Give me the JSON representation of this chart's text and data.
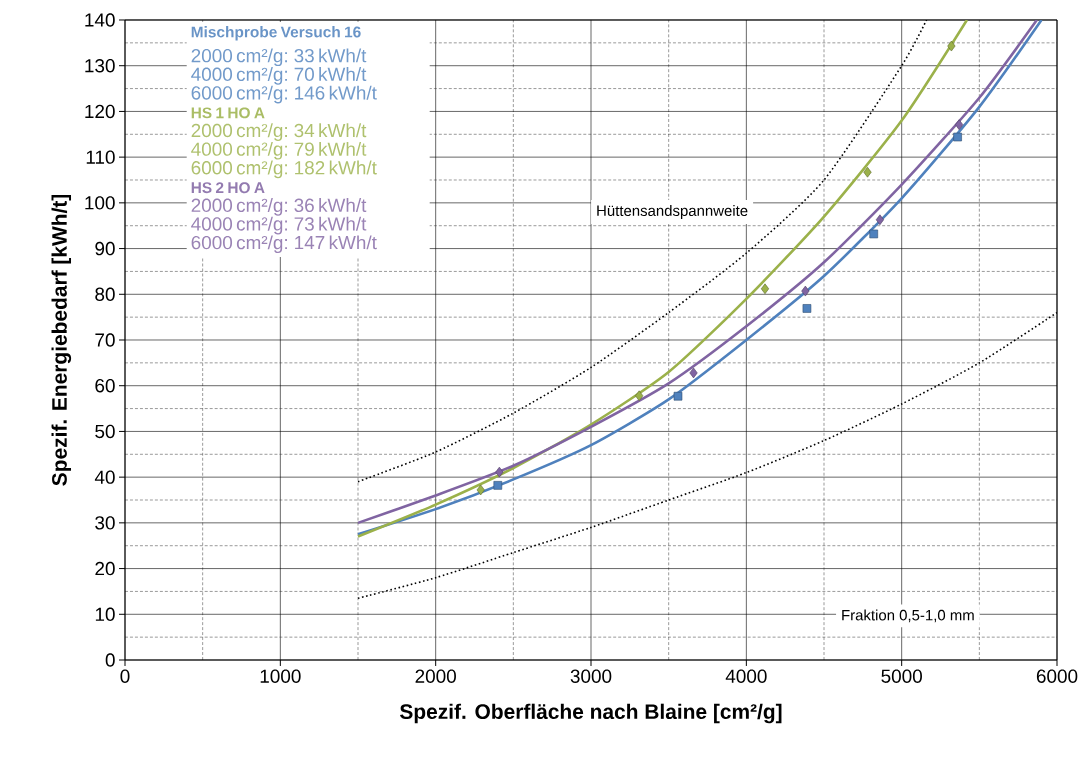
{
  "chart_data": {
    "type": "line",
    "xlabel": "Spezif. Oberfläche nach Blaine [cm²/g]",
    "ylabel": "Spezif. Energiebedarf [kWh/t]",
    "xlim": [
      0,
      6000
    ],
    "ylim": [
      0,
      140
    ],
    "xticks": [
      0,
      1000,
      2000,
      3000,
      4000,
      5000,
      6000
    ],
    "yticks": [
      0,
      10,
      20,
      30,
      40,
      50,
      60,
      70,
      80,
      90,
      100,
      110,
      120,
      130,
      140
    ],
    "grid": true,
    "series": [
      {
        "name": "Mischprobe Versuch 16",
        "color": "#4f81bd",
        "marker": "none",
        "line_style": "solid",
        "x": [
          1500,
          2000,
          2500,
          3000,
          3500,
          4000,
          4500,
          5000,
          5500,
          5900
        ],
        "values": [
          27.5,
          33,
          39.5,
          47,
          57,
          70,
          84,
          101,
          121,
          140
        ]
      },
      {
        "name": "HS 1 HO A",
        "color": "#9bb14a",
        "marker": "none",
        "line_style": "solid",
        "x": [
          1500,
          2000,
          2500,
          3000,
          3500,
          4000,
          4500,
          5000,
          5420
        ],
        "values": [
          27,
          34,
          42,
          51.5,
          63,
          79,
          97,
          118,
          140
        ]
      },
      {
        "name": "HS 2 HO A",
        "color": "#8064a2",
        "marker": "none",
        "line_style": "solid",
        "x": [
          1500,
          2000,
          2500,
          3000,
          3500,
          4000,
          4500,
          5000,
          5500,
          5870
        ],
        "values": [
          30,
          36,
          42.5,
          51,
          60.5,
          73,
          87,
          104,
          123,
          140
        ]
      },
      {
        "color": "#4f81bd",
        "type": "scatter",
        "marker": "square",
        "x": [
          2400,
          3560,
          4390,
          4820,
          5360
        ],
        "values": [
          38.2,
          57.7,
          76.9,
          93.2,
          114.4
        ]
      },
      {
        "color": "#9bb14a",
        "type": "scatter",
        "marker": "diamond",
        "x": [
          2290,
          3310,
          4120,
          4780,
          5320
        ],
        "values": [
          37.2,
          57.8,
          81.2,
          106.7,
          134.3
        ]
      },
      {
        "color": "#8064a2",
        "type": "scatter",
        "marker": "diamond",
        "x": [
          2410,
          3660,
          4380,
          4860,
          5370
        ],
        "values": [
          41.1,
          62.8,
          80.7,
          96.3,
          117.1
        ]
      },
      {
        "color": "#000000",
        "marker": "none",
        "line_style": "dotted",
        "x": [
          1500,
          2000,
          2500,
          3000,
          3500,
          4000,
          4500,
          5000,
          5160
        ],
        "values": [
          39,
          45.5,
          54,
          64,
          76,
          89,
          105,
          130,
          140
        ]
      },
      {
        "color": "#000000",
        "marker": "none",
        "line_style": "dotted",
        "x": [
          1500,
          2000,
          2500,
          3000,
          3500,
          4000,
          4500,
          5000,
          5500,
          6000
        ],
        "values": [
          13.5,
          18,
          23.5,
          29,
          35,
          41,
          48,
          56,
          65,
          76
        ]
      }
    ],
    "annotations": [
      "2000 cm²/g: 33 kWh/t",
      "4000 cm²/g: 70 kWh/t",
      "6000 cm²/g: 146 kWh/t",
      "2000 cm²/g: 34 kWh/t",
      "4000 cm²/g: 79 kWh/t",
      "6000 cm²/g: 182 kWh/t",
      "2000 cm²/g: 36 kWh/t",
      "4000 cm²/g: 73 kWh/t",
      "6000 cm²/g: 147 kWh/t",
      "Hüttensandspannweite",
      "Fraktion 0,5-1,0 mm"
    ]
  }
}
